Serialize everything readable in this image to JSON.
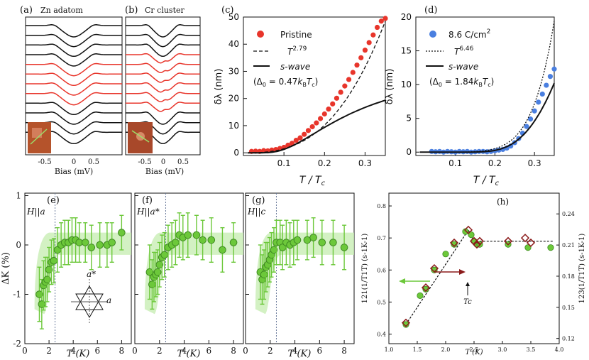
{
  "colors": {
    "red": "#e8352b",
    "blue": "#4a7fe0",
    "green": "#6cc83a",
    "green_band": "#c8eeb4",
    "dark_red": "#8b1a1a",
    "black": "#111111",
    "grid_dash": "#6a7a9a"
  },
  "panel_a": {
    "label": "(a)",
    "title": "Zn adatom",
    "xlabel": "Bias (mV)",
    "ticks": [
      "-0.5",
      "0",
      "0.5"
    ],
    "curve_colors": [
      "black",
      "black",
      "black",
      "black",
      "red",
      "red",
      "red",
      "red",
      "black",
      "black",
      "black",
      "black"
    ]
  },
  "panel_b": {
    "label": "(b)",
    "title": "Cr cluster",
    "xlabel": "Bias (mV)",
    "ticks": [
      "-0.5",
      "0",
      "0.5"
    ],
    "curve_colors": [
      "black",
      "black",
      "black",
      "red",
      "red",
      "red",
      "red",
      "red",
      "red",
      "black",
      "black",
      "black"
    ]
  },
  "chart_data": [
    {
      "id": "c",
      "type": "scatter",
      "panel_label": "(c)",
      "xlabel": "T / T_c",
      "ylabel": "δλ (nm)",
      "xlim": [
        0.0,
        0.35
      ],
      "ylim": [
        -1,
        50
      ],
      "xticks": [
        "0.1",
        "0.2",
        "0.3"
      ],
      "yticks": [
        "0",
        "10",
        "20",
        "30",
        "40",
        "50"
      ],
      "series": [
        {
          "name": "Pristine",
          "kind": "points",
          "color": "red",
          "x": [
            0.02,
            0.03,
            0.04,
            0.05,
            0.06,
            0.07,
            0.08,
            0.09,
            0.1,
            0.11,
            0.12,
            0.13,
            0.14,
            0.15,
            0.16,
            0.17,
            0.18,
            0.19,
            0.2,
            0.21,
            0.22,
            0.23,
            0.24,
            0.25,
            0.26,
            0.27,
            0.28,
            0.29,
            0.3,
            0.31,
            0.32,
            0.33,
            0.34,
            0.35
          ],
          "y": [
            0.5,
            0.6,
            0.5,
            0.8,
            0.7,
            1.0,
            1.2,
            1.6,
            2.0,
            2.8,
            3.5,
            4.6,
            5.5,
            6.8,
            8.2,
            9.6,
            11.0,
            12.6,
            14.3,
            16.1,
            18.0,
            20.1,
            22.3,
            24.6,
            27.0,
            29.6,
            32.3,
            35.0,
            37.8,
            40.6,
            43.4,
            46.2,
            48.5,
            49.5
          ]
        },
        {
          "name": "T^{2.79}",
          "kind": "dashed",
          "exponent": 2.79,
          "scale": 94.0
        },
        {
          "name": "s-wave",
          "kind": "solid",
          "delta0": 0.47,
          "scale": 25.8
        }
      ],
      "legend": [
        "Pristine",
        "T",
        "2.79",
        "s-wave",
        "(Δ",
        "0",
        " = 0.47",
        "k",
        "B",
        "T",
        "c",
        ")"
      ]
    },
    {
      "id": "d",
      "type": "scatter",
      "panel_label": "(d)",
      "xlabel": "T / T_c",
      "ylabel": "δλ (nm)",
      "xlim": [
        0.0,
        0.35
      ],
      "ylim": [
        -0.5,
        20
      ],
      "xticks": [
        "0.1",
        "0.2",
        "0.3"
      ],
      "yticks": [
        "0",
        "5",
        "10",
        "15",
        "20"
      ],
      "series": [
        {
          "name": "8.6 C/cm2",
          "kind": "points",
          "color": "blue",
          "x": [
            0.04,
            0.05,
            0.06,
            0.07,
            0.08,
            0.09,
            0.1,
            0.11,
            0.12,
            0.13,
            0.14,
            0.15,
            0.16,
            0.17,
            0.18,
            0.19,
            0.2,
            0.21,
            0.22,
            0.23,
            0.24,
            0.25,
            0.26,
            0.27,
            0.28,
            0.29,
            0.3,
            0.31,
            0.32,
            0.33,
            0.34,
            0.35
          ],
          "y": [
            0.1,
            0.05,
            0.1,
            0.0,
            0.1,
            0.05,
            0.0,
            0.1,
            0.05,
            0.1,
            0.0,
            0.05,
            0.1,
            0.1,
            0.05,
            0.1,
            0.2,
            0.3,
            0.4,
            0.6,
            0.9,
            1.4,
            2.0,
            2.8,
            3.8,
            4.9,
            6.1,
            7.4,
            8.6,
            9.9,
            11.2,
            12.3
          ]
        },
        {
          "name": "T^{6.46}",
          "kind": "dotted",
          "exponent": 6.46,
          "scale": 10000
        },
        {
          "name": "s-wave",
          "kind": "solid",
          "delta0": 1.84,
          "scale": 10.2
        }
      ],
      "legend": [
        "8.6 C/cm",
        "2",
        "T",
        "6.46",
        "s-wave",
        "(Δ",
        "0",
        " = 1.84",
        "k",
        "B",
        "T",
        "c",
        ")"
      ]
    },
    {
      "id": "e",
      "type": "scatter",
      "panel_label": "(e)",
      "field_label": "H||a",
      "xlabel": "T (K)",
      "ylabel": "ΔK (%)",
      "xlim": [
        0,
        8.8
      ],
      "ylim": [
        -2,
        1.05
      ],
      "xticks": [
        "0",
        "2",
        "4",
        "6",
        "8"
      ],
      "yticks": [
        "-2",
        "-1",
        "0",
        "1"
      ],
      "tc": 2.5,
      "points": {
        "x": [
          1.2,
          1.4,
          1.55,
          1.7,
          1.85,
          2.0,
          2.2,
          2.4,
          2.7,
          3.0,
          3.3,
          3.6,
          3.9,
          4.2,
          4.5,
          5.0,
          5.5,
          6.2,
          6.8,
          7.2,
          8.0
        ],
        "y": [
          -1.0,
          -1.2,
          -0.82,
          -0.75,
          -0.7,
          -0.5,
          -0.35,
          -0.32,
          -0.1,
          0.0,
          0.05,
          0.05,
          0.1,
          0.1,
          0.05,
          0.05,
          -0.05,
          0.0,
          0.0,
          0.05,
          0.25
        ],
        "err": [
          0.55,
          0.5,
          0.5,
          0.5,
          0.45,
          0.45,
          0.45,
          0.45,
          0.45,
          0.45,
          0.45,
          0.45,
          0.45,
          0.45,
          0.4,
          0.4,
          0.45,
          0.45,
          0.45,
          0.4,
          0.35
        ]
      },
      "inset_labels": [
        "a*",
        "a"
      ]
    },
    {
      "id": "f",
      "type": "scatter",
      "panel_label": "(f)",
      "field_label": "H||a*",
      "xlabel": "T (K)",
      "ylabel": "",
      "xlim": [
        0,
        8.8
      ],
      "ylim": [
        -2,
        1.05
      ],
      "xticks": [
        "0",
        "2",
        "4",
        "6",
        "8"
      ],
      "yticks": [],
      "tc": 2.5,
      "points": {
        "x": [
          1.2,
          1.4,
          1.55,
          1.7,
          1.85,
          2.0,
          2.2,
          2.4,
          2.7,
          3.0,
          3.3,
          3.6,
          3.9,
          4.3,
          5.0,
          5.5,
          6.2,
          7.1,
          8.0
        ],
        "y": [
          -0.55,
          -0.8,
          -0.65,
          -0.6,
          -0.55,
          -0.4,
          -0.25,
          -0.2,
          -0.05,
          0.0,
          0.05,
          0.2,
          0.15,
          0.2,
          0.2,
          0.1,
          0.1,
          -0.1,
          0.05
        ],
        "err": [
          0.55,
          0.5,
          0.5,
          0.45,
          0.45,
          0.45,
          0.45,
          0.45,
          0.45,
          0.45,
          0.45,
          0.45,
          0.45,
          0.45,
          0.4,
          0.4,
          0.45,
          0.45,
          0.4
        ]
      }
    },
    {
      "id": "g",
      "type": "scatter",
      "panel_label": "(g)",
      "field_label": "H||c",
      "xlabel": "T (K)",
      "ylabel": "",
      "xlim": [
        0,
        8.8
      ],
      "ylim": [
        -2,
        1.05
      ],
      "xticks": [
        "0",
        "2",
        "4",
        "6",
        "8"
      ],
      "yticks": [],
      "tc": 2.5,
      "points": {
        "x": [
          1.2,
          1.35,
          1.5,
          1.65,
          1.8,
          1.95,
          2.1,
          2.3,
          2.5,
          2.8,
          3.0,
          3.3,
          3.6,
          3.9,
          4.2,
          5.0,
          5.5,
          6.2,
          7.1,
          8.0
        ],
        "y": [
          -0.55,
          -0.7,
          -0.6,
          -0.45,
          -0.4,
          -0.3,
          -0.2,
          -0.1,
          0.05,
          0.05,
          -0.05,
          0.05,
          0.0,
          0.05,
          0.1,
          0.1,
          0.15,
          0.05,
          0.05,
          -0.05
        ],
        "err": [
          0.55,
          0.5,
          0.5,
          0.5,
          0.45,
          0.45,
          0.45,
          0.45,
          0.45,
          0.45,
          0.45,
          0.45,
          0.45,
          0.45,
          0.4,
          0.4,
          0.4,
          0.45,
          0.45,
          0.45
        ]
      }
    },
    {
      "id": "h",
      "type": "scatter",
      "panel_label": "(h)",
      "xlabel": "T (K)",
      "ylabel_left": "121(1/T1T) (s-1K-1)",
      "ylabel_right": "123(1/T1T) (s-1K-1)",
      "xlim": [
        1.0,
        4.0
      ],
      "ylim": [
        0.37,
        0.84
      ],
      "ylim_right": [
        0.115,
        0.26
      ],
      "xticks": [
        "1.0",
        "1.5",
        "2.0",
        "2.5",
        "3.0",
        "3.5",
        "4.0"
      ],
      "yticks": [
        "0.4",
        "0.5",
        "0.6",
        "0.7",
        "0.8"
      ],
      "yticks_right": [
        "0.12",
        "0.15",
        "0.18",
        "0.21",
        "0.24"
      ],
      "tc_label": "Tc",
      "circles": {
        "x": [
          1.3,
          1.55,
          1.65,
          1.8,
          2.0,
          2.15,
          2.35,
          2.45,
          2.5,
          2.55,
          2.6,
          3.1,
          3.45,
          3.85
        ],
        "y": [
          0.43,
          0.52,
          0.54,
          0.6,
          0.65,
          0.68,
          0.72,
          0.71,
          0.69,
          0.68,
          0.68,
          0.68,
          0.67,
          0.67
        ]
      },
      "diamonds": {
        "x": [
          1.3,
          1.65,
          1.8,
          2.15,
          2.4,
          2.5,
          2.55,
          2.6,
          3.1,
          3.4,
          3.5
        ],
        "y": [
          0.435,
          0.545,
          0.605,
          0.685,
          0.725,
          0.69,
          0.68,
          0.69,
          0.69,
          0.7,
          0.685
        ]
      },
      "fit": {
        "x": [
          1.3,
          2.4,
          2.5,
          3.9
        ],
        "y": [
          0.43,
          0.725,
          0.69,
          0.69
        ]
      }
    }
  ]
}
